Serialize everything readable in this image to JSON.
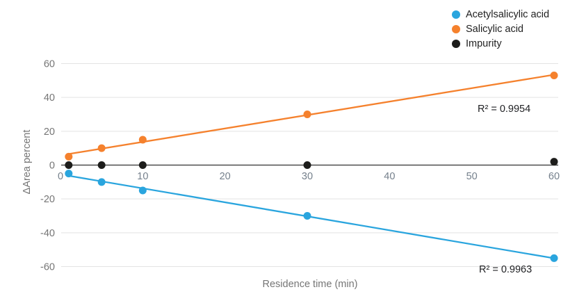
{
  "legend": {
    "items": [
      {
        "label": "Acetylsalicylic acid",
        "color": "#2aa5de"
      },
      {
        "label": "Salicylic acid",
        "color": "#f5812d"
      },
      {
        "label": "Impurity",
        "color": "#1d1d1b"
      }
    ]
  },
  "axes": {
    "x_title": "Residence time (min)",
    "y_title": "ΔArea percent"
  },
  "annotations": {
    "r2_salicylic": "R² = 0.9954",
    "r2_acetylsalicylic": "R² = 0.9963"
  },
  "chart_data": {
    "type": "scatter",
    "title": "",
    "xlabel": "Residence time (min)",
    "ylabel": "ΔArea percent",
    "x": [
      1,
      5,
      10,
      30,
      60
    ],
    "series": [
      {
        "name": "Acetylsalicylic acid",
        "color": "#2aa5de",
        "values": [
          -5,
          -10,
          -15,
          -30,
          -55
        ],
        "trendline": true,
        "r2": 0.9963
      },
      {
        "name": "Salicylic acid",
        "color": "#f5812d",
        "values": [
          5,
          10,
          15,
          30,
          53
        ],
        "trendline": true,
        "r2": 0.9954
      },
      {
        "name": "Impurity",
        "color": "#1d1d1b",
        "values": [
          0,
          0,
          0,
          0,
          2
        ],
        "trendline": false
      }
    ],
    "x_ticks": [
      0,
      10,
      20,
      30,
      40,
      50,
      60
    ],
    "y_ticks": [
      60,
      40,
      20,
      0,
      -20,
      -40,
      -60
    ],
    "xlim": [
      0,
      60.5
    ],
    "ylim": [
      -60,
      60
    ],
    "grid": "horizontal-only",
    "legend_position": "top-right",
    "marker_radius": 5.5
  }
}
